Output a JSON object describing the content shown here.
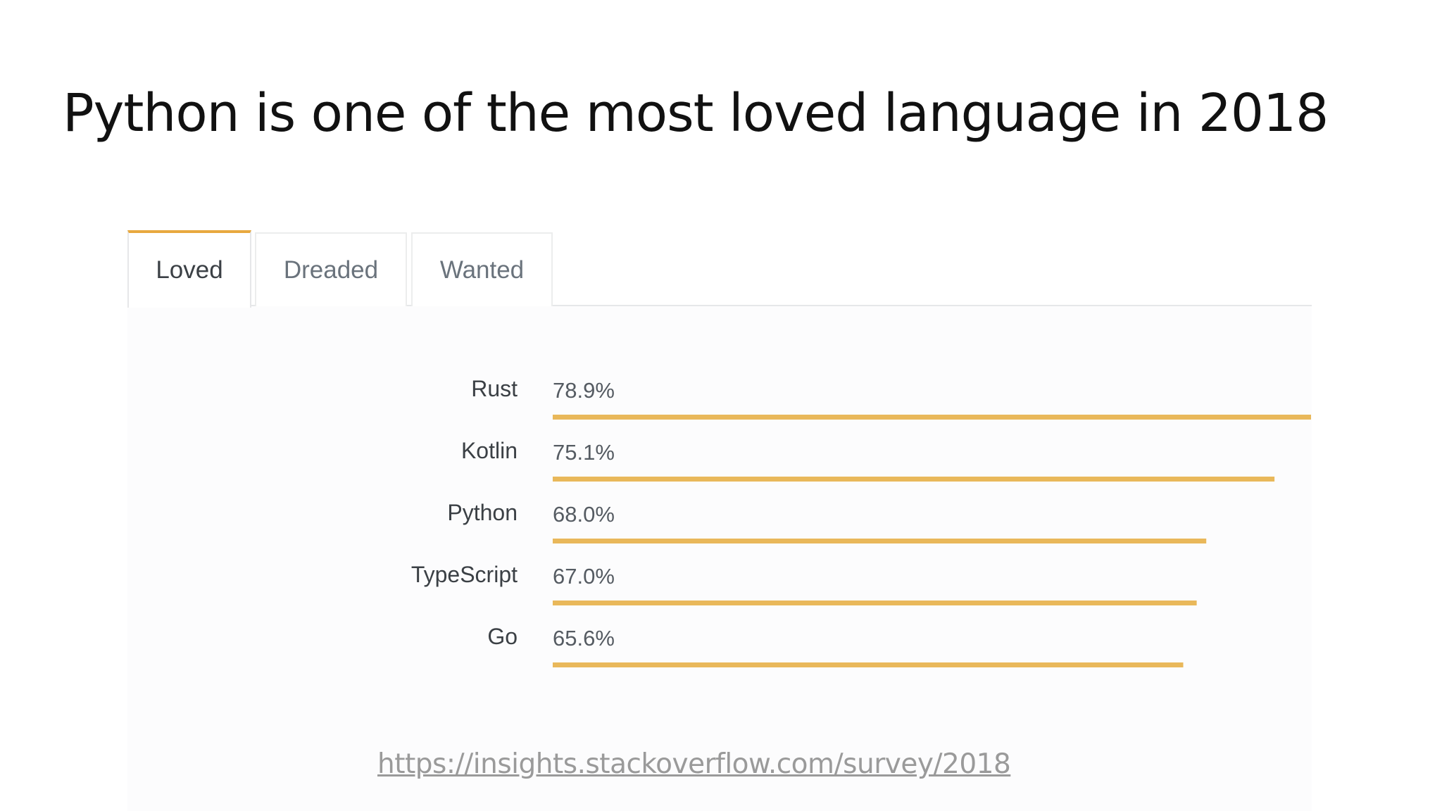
{
  "slide": {
    "title": "Python is one of the most loved language in 2018",
    "source_url": "https://insights.stackoverflow.com/survey/2018"
  },
  "tabs": [
    {
      "label": "Loved",
      "active": true
    },
    {
      "label": "Dreaded",
      "active": false
    },
    {
      "label": "Wanted",
      "active": false
    }
  ],
  "colors": {
    "bar": "#e9b85a",
    "label": "#3b4045",
    "value": "#555b62",
    "accent": "#e8a93f"
  },
  "chart_data": {
    "type": "bar",
    "orientation": "horizontal",
    "categories": [
      "Rust",
      "Kotlin",
      "Python",
      "TypeScript",
      "Go"
    ],
    "values": [
      78.9,
      75.1,
      68.0,
      67.0,
      65.6
    ],
    "value_labels": [
      "78.9%",
      "75.1%",
      "68.0%",
      "67.0%",
      "65.6%"
    ],
    "unit": "%",
    "title": "",
    "xlabel": "",
    "ylabel": "",
    "grid": false,
    "legend": "none"
  }
}
